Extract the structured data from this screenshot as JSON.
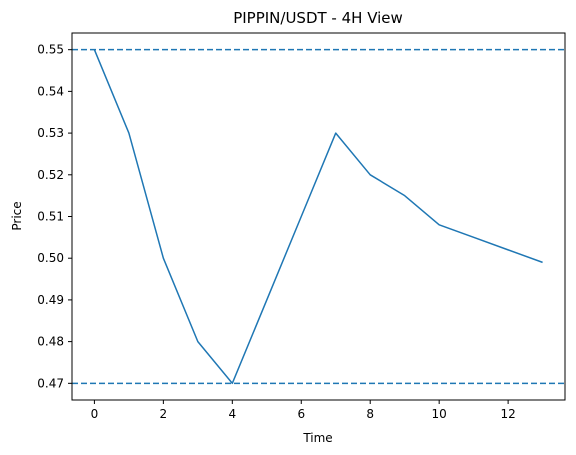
{
  "chart_data": {
    "type": "line",
    "title": "PIPPIN/USDT - 4H View",
    "xlabel": "Time",
    "ylabel": "Price",
    "xlim": [
      -0.65,
      13.65
    ],
    "ylim": [
      0.466,
      0.554
    ],
    "x_ticks": [
      0,
      2,
      4,
      6,
      8,
      10,
      12
    ],
    "x_tick_labels": [
      "0",
      "2",
      "4",
      "6",
      "8",
      "10",
      "12"
    ],
    "y_ticks": [
      0.47,
      0.48,
      0.49,
      0.5,
      0.51,
      0.52,
      0.53,
      0.54,
      0.55
    ],
    "y_tick_labels": [
      "0.47",
      "0.48",
      "0.49",
      "0.50",
      "0.51",
      "0.52",
      "0.53",
      "0.54",
      "0.55"
    ],
    "grid": false,
    "series": [
      {
        "x": [
          0,
          1,
          2,
          3,
          4,
          5,
          6,
          7,
          8,
          9,
          10,
          11,
          12,
          13
        ],
        "values": [
          0.55,
          0.53,
          0.5,
          0.48,
          0.47,
          0.49,
          0.51,
          0.53,
          0.52,
          0.515,
          0.508,
          0.505,
          0.502,
          0.499
        ],
        "color": "#1f77b4"
      }
    ],
    "hlines": [
      {
        "y": 0.55,
        "style": "dashed",
        "color": "#1f77b4"
      },
      {
        "y": 0.47,
        "style": "dashed",
        "color": "#1f77b4"
      }
    ]
  }
}
